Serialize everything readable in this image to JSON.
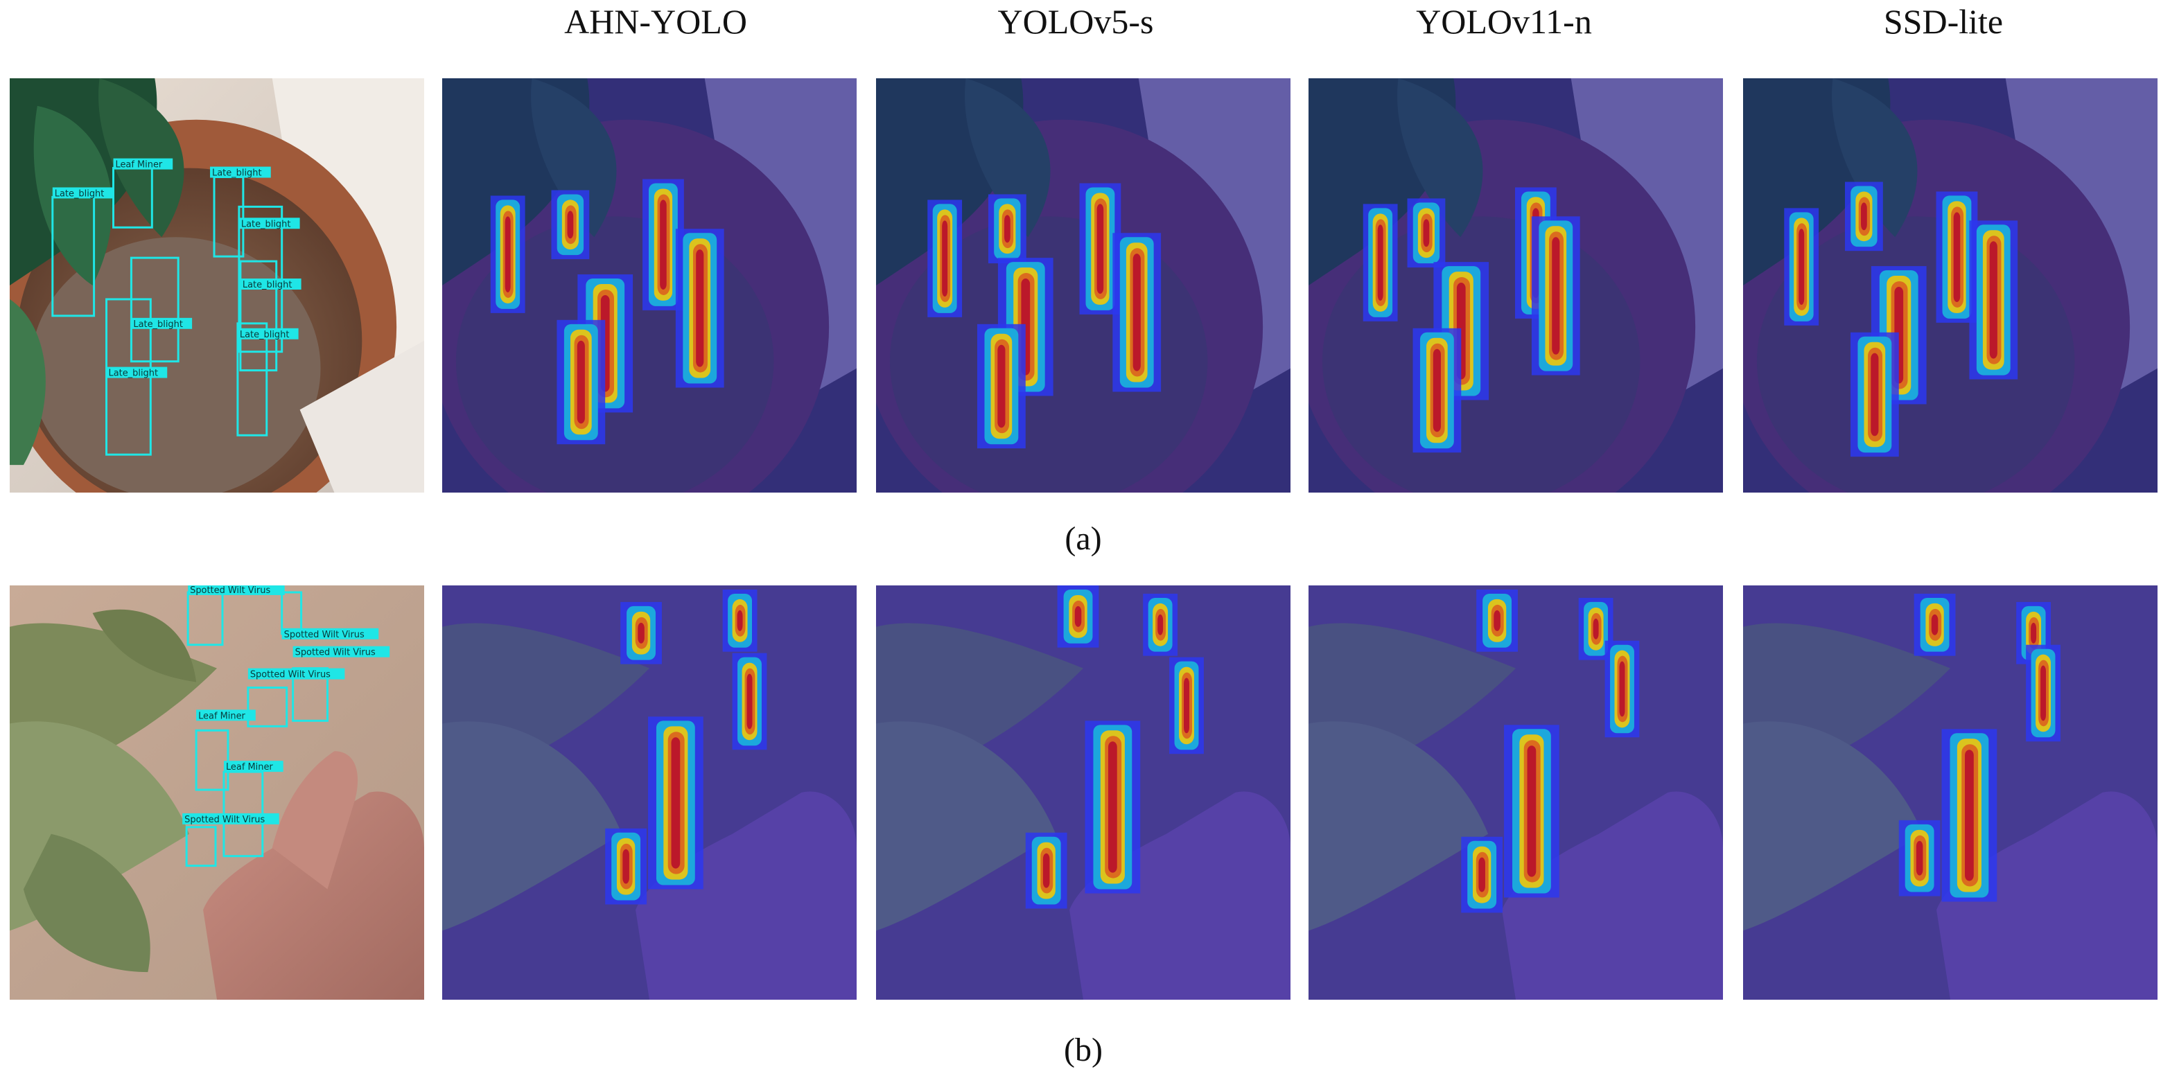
{
  "columns": [
    "AHN-YOLO",
    "YOLOv5-s",
    "YOLOv11-n",
    "SSD-lite"
  ],
  "rows": [
    {
      "caption": "(a)",
      "detections": [
        {
          "label": "Late_blight"
        },
        {
          "label": "Leaf Miner"
        },
        {
          "label": "Late_blight"
        },
        {
          "label": "Late_blight"
        },
        {
          "label": "Late_blight"
        },
        {
          "label": "Late_blight"
        },
        {
          "label": "Late_blight"
        },
        {
          "label": "Late_blight"
        }
      ]
    },
    {
      "caption": "(b)",
      "detections": [
        {
          "label": "Spotted Wilt Virus"
        },
        {
          "label": "Spotted Wilt Virus"
        },
        {
          "label": "Spotted Wilt Virus"
        },
        {
          "label": "Spotted Wilt Virus"
        },
        {
          "label": "Leaf Miner"
        },
        {
          "label": "Leaf Miner"
        },
        {
          "label": "Spotted Wilt Virus"
        }
      ]
    }
  ],
  "colors": {
    "box": "#1fe6e6",
    "overlay": "#3a2ea8",
    "heat": [
      "#2a3bff",
      "#17c4e8",
      "#ffe600",
      "#ff7a00",
      "#d8140f"
    ]
  }
}
